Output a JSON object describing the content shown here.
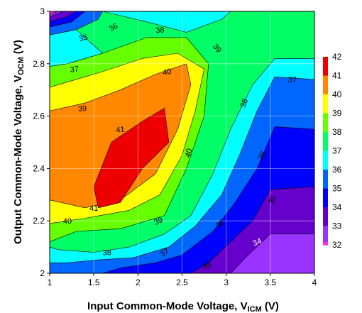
{
  "chart_data": {
    "type": "heatmap",
    "title": "",
    "xlabel": {
      "main": "Input Common-Mode Voltage, V",
      "sub": "ICM",
      "unit": " (V)"
    },
    "ylabel": {
      "main": "Output Common-Mode Voltage, V",
      "sub": "OCM",
      "unit": " (V)"
    },
    "xlim": [
      1,
      4
    ],
    "ylim": [
      2,
      3
    ],
    "xticks": [
      "1",
      "1.5",
      "2",
      "2.5",
      "3",
      "3.5",
      "4"
    ],
    "yticks": [
      "2",
      "2.2",
      "2.4",
      "2.6",
      "2.8",
      "3"
    ],
    "grid": true,
    "colorbar": {
      "placement": "right",
      "levels": [
        {
          "label": "32",
          "color": "#ff33cc"
        },
        {
          "label": "33",
          "color": "#9933ff"
        },
        {
          "label": "34",
          "color": "#6600cc"
        },
        {
          "label": "35",
          "color": "#0000ff"
        },
        {
          "label": "36",
          "color": "#0066ff"
        },
        {
          "label": "37",
          "color": "#00ffff"
        },
        {
          "label": "38",
          "color": "#00ff66"
        },
        {
          "label": "39",
          "color": "#66ff00"
        },
        {
          "label": "40",
          "color": "#ffff00"
        },
        {
          "label": "41",
          "color": "#ff8800"
        },
        {
          "label": "42",
          "color": "#ee0000"
        }
      ]
    },
    "regions": [
      {
        "level": 38,
        "points": [
          [
            1,
            2
          ],
          [
            4,
            2
          ],
          [
            4,
            3
          ],
          [
            1,
            3
          ]
        ]
      },
      {
        "level": 37,
        "points": [
          [
            1,
            2
          ],
          [
            4,
            2
          ],
          [
            4,
            2.82
          ],
          [
            3.55,
            2.82
          ],
          [
            3.3,
            2.72
          ],
          [
            3.05,
            2.55
          ],
          [
            2.85,
            2.38
          ],
          [
            2.6,
            2.22
          ],
          [
            2.3,
            2.15
          ],
          [
            1.9,
            2.1
          ],
          [
            1.5,
            2.08
          ],
          [
            1.1,
            2.09
          ],
          [
            1,
            2.1
          ]
        ]
      },
      {
        "level": 37,
        "points": [
          [
            1.6,
            3
          ],
          [
            2.1,
            2.96
          ],
          [
            2.55,
            2.92
          ],
          [
            2.95,
            2.97
          ],
          [
            3.05,
            3
          ]
        ]
      },
      {
        "level": 36,
        "points": [
          [
            1,
            2
          ],
          [
            4,
            2
          ],
          [
            4,
            2.74
          ],
          [
            3.55,
            2.75
          ],
          [
            3.35,
            2.62
          ],
          [
            3.15,
            2.45
          ],
          [
            2.95,
            2.3
          ],
          [
            2.65,
            2.18
          ],
          [
            2.35,
            2.1
          ],
          [
            1.95,
            2.06
          ],
          [
            1.5,
            2.05
          ],
          [
            1.2,
            2.04
          ],
          [
            1,
            2.04
          ]
        ]
      },
      {
        "level": 35,
        "points": [
          [
            1.6,
            2
          ],
          [
            4,
            2
          ],
          [
            4,
            2.55
          ],
          [
            3.55,
            2.56
          ],
          [
            3.35,
            2.4
          ],
          [
            3.1,
            2.27
          ],
          [
            2.85,
            2.16
          ],
          [
            2.5,
            2.07
          ],
          [
            2.2,
            2.04
          ],
          [
            1.8,
            2.02
          ]
        ]
      },
      {
        "level": 34,
        "points": [
          [
            2.6,
            2
          ],
          [
            4,
            2
          ],
          [
            4,
            2.33
          ],
          [
            3.5,
            2.32
          ],
          [
            3.3,
            2.2
          ],
          [
            3.05,
            2.12
          ],
          [
            2.8,
            2.04
          ]
        ]
      },
      {
        "level": 33,
        "points": [
          [
            3.05,
            2
          ],
          [
            4,
            2
          ],
          [
            4,
            2.15
          ],
          [
            3.5,
            2.15
          ],
          [
            3.25,
            2.07
          ]
        ]
      },
      {
        "level": 39,
        "points": [
          [
            1,
            2.12
          ],
          [
            1.3,
            2.16
          ],
          [
            1.8,
            2.17
          ],
          [
            2.3,
            2.22
          ],
          [
            2.55,
            2.4
          ],
          [
            2.75,
            2.6
          ],
          [
            2.8,
            2.8
          ],
          [
            2.55,
            2.9
          ],
          [
            2.1,
            2.9
          ],
          [
            1.6,
            2.84
          ],
          [
            1.2,
            2.8
          ],
          [
            1,
            2.79
          ]
        ]
      },
      {
        "level": 40,
        "points": [
          [
            1,
            2.19
          ],
          [
            1.4,
            2.21
          ],
          [
            1.9,
            2.24
          ],
          [
            2.25,
            2.3
          ],
          [
            2.5,
            2.45
          ],
          [
            2.65,
            2.62
          ],
          [
            2.75,
            2.78
          ],
          [
            2.45,
            2.84
          ],
          [
            2.05,
            2.82
          ],
          [
            1.6,
            2.77
          ],
          [
            1.2,
            2.73
          ],
          [
            1,
            2.71
          ]
        ]
      },
      {
        "level": 41,
        "points": [
          [
            1,
            2.28
          ],
          [
            1.4,
            2.25
          ],
          [
            1.8,
            2.28
          ],
          [
            2.2,
            2.38
          ],
          [
            2.45,
            2.55
          ],
          [
            2.6,
            2.72
          ],
          [
            2.55,
            2.8
          ],
          [
            2.2,
            2.76
          ],
          [
            1.8,
            2.7
          ],
          [
            1.4,
            2.65
          ],
          [
            1,
            2.62
          ]
        ]
      },
      {
        "level": 42,
        "points": [
          [
            1.55,
            2.25
          ],
          [
            1.8,
            2.27
          ],
          [
            2.05,
            2.4
          ],
          [
            2.35,
            2.5
          ],
          [
            2.3,
            2.63
          ],
          [
            2.05,
            2.58
          ],
          [
            1.7,
            2.5
          ],
          [
            1.5,
            2.33
          ]
        ]
      },
      {
        "level": 37,
        "points": [
          [
            1,
            2.79
          ],
          [
            1.2,
            2.8
          ],
          [
            1.6,
            2.84
          ],
          [
            1.3,
            2.93
          ],
          [
            1,
            2.91
          ]
        ]
      },
      {
        "level": 36,
        "points": [
          [
            1,
            2.91
          ],
          [
            1.3,
            2.93
          ],
          [
            1.55,
            2.97
          ],
          [
            1.6,
            3
          ],
          [
            1,
            3
          ]
        ]
      },
      {
        "level": 35,
        "points": [
          [
            1,
            2.94
          ],
          [
            1.25,
            2.96
          ],
          [
            1.4,
            3
          ],
          [
            1,
            3
          ]
        ]
      },
      {
        "level": 34,
        "points": [
          [
            1,
            2.96
          ],
          [
            1.2,
            2.98
          ],
          [
            1.3,
            3
          ],
          [
            1,
            3
          ]
        ]
      },
      {
        "level": 33,
        "points": [
          [
            1,
            2.98
          ],
          [
            1.15,
            3
          ],
          [
            1,
            3
          ]
        ]
      },
      {
        "level": 32,
        "points": [
          [
            1,
            2.99
          ],
          [
            1.1,
            3
          ],
          [
            1,
            3
          ]
        ]
      }
    ],
    "contour_labels": [
      {
        "text": "36",
        "x": 1.72,
        "y": 2.94,
        "rotate": -30
      },
      {
        "text": "35",
        "x": 1.38,
        "y": 2.9,
        "rotate": -15
      },
      {
        "text": "38",
        "x": 2.25,
        "y": 2.93,
        "rotate": -5
      },
      {
        "text": "39",
        "x": 2.9,
        "y": 2.86,
        "rotate": 50
      },
      {
        "text": "37",
        "x": 1.28,
        "y": 2.78,
        "rotate": -5
      },
      {
        "text": "40",
        "x": 2.33,
        "y": 2.77,
        "rotate": -10
      },
      {
        "text": "37",
        "x": 3.75,
        "y": 2.74,
        "rotate": 0
      },
      {
        "text": "39",
        "x": 1.37,
        "y": 2.63,
        "rotate": -5
      },
      {
        "text": "38",
        "x": 3.2,
        "y": 2.65,
        "rotate": -70
      },
      {
        "text": "41",
        "x": 1.8,
        "y": 2.55,
        "rotate": -5
      },
      {
        "text": "40",
        "x": 2.57,
        "y": 2.46,
        "rotate": -75
      },
      {
        "text": "36",
        "x": 3.4,
        "y": 2.45,
        "rotate": -60
      },
      {
        "text": "35",
        "x": 3.52,
        "y": 2.28,
        "rotate": -65
      },
      {
        "text": "41",
        "x": 1.5,
        "y": 2.25,
        "rotate": 0
      },
      {
        "text": "40",
        "x": 1.2,
        "y": 2.2,
        "rotate": 0
      },
      {
        "text": "39",
        "x": 2.23,
        "y": 2.2,
        "rotate": -25
      },
      {
        "text": "36",
        "x": 2.93,
        "y": 2.19,
        "rotate": -40
      },
      {
        "text": "34",
        "x": 3.35,
        "y": 2.12,
        "rotate": -25,
        "light": true
      },
      {
        "text": "38",
        "x": 1.65,
        "y": 2.08,
        "rotate": 0
      },
      {
        "text": "37",
        "x": 2.3,
        "y": 2.08,
        "rotate": -30
      },
      {
        "text": "35",
        "x": 2.78,
        "y": 2.03,
        "rotate": -30
      }
    ]
  }
}
